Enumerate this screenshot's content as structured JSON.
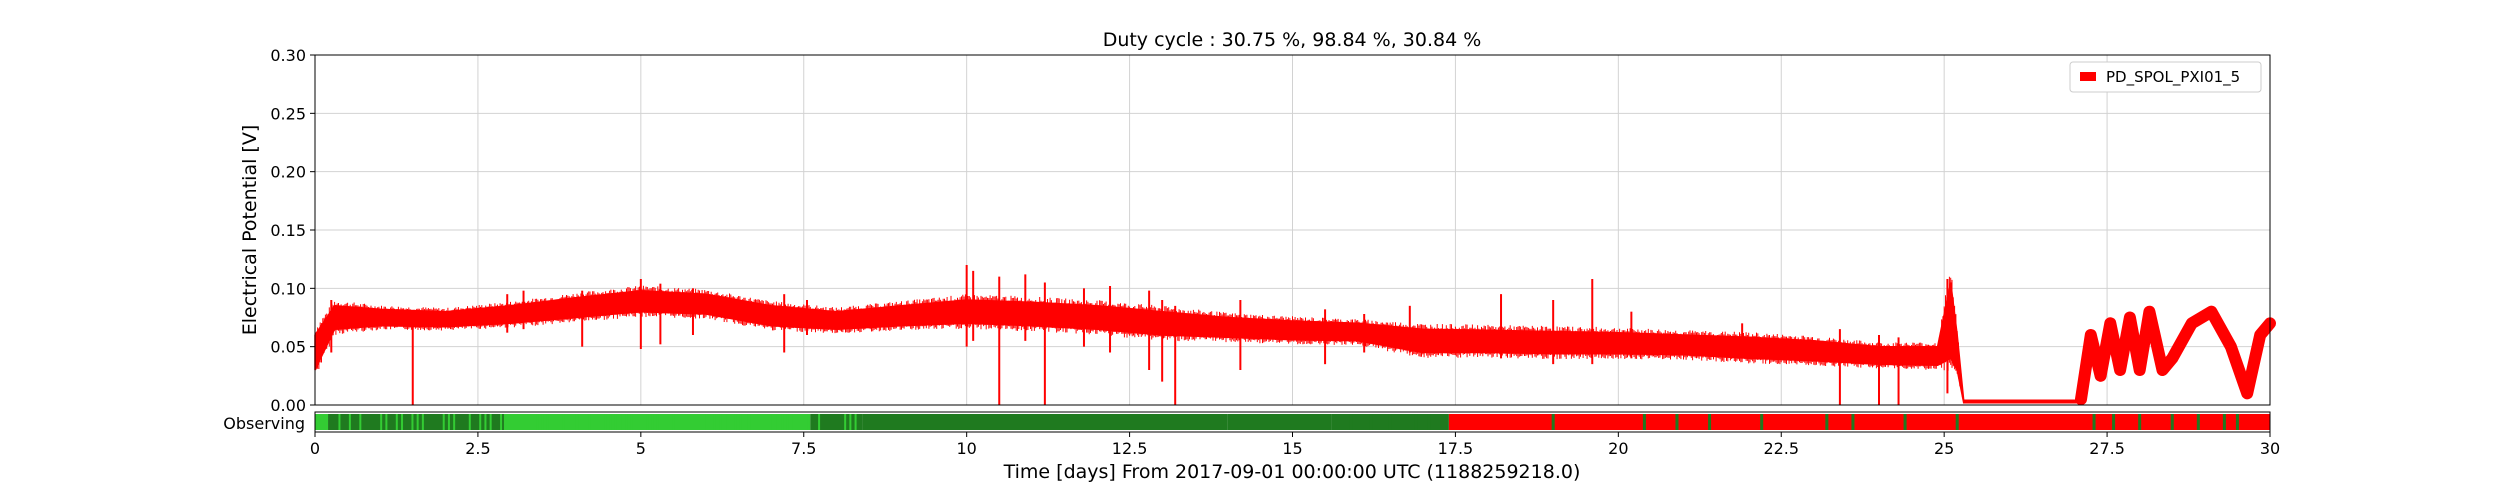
{
  "chart_data": {
    "type": "line",
    "title": "Duty cycle : 30.75 %, 98.84 %, 30.84 %",
    "xlabel": "Time [days] From 2017-09-01 00:00:00 UTC (1188259218.0)",
    "ylabel": "Electrical Potential [V]",
    "xlim": [
      0,
      30
    ],
    "ylim": [
      0,
      0.3
    ],
    "xticks": [
      {
        "value": 0,
        "label": "0"
      },
      {
        "value": 2.5,
        "label": "2.5"
      },
      {
        "value": 5,
        "label": "5"
      },
      {
        "value": 7.5,
        "label": "7.5"
      },
      {
        "value": 10,
        "label": "10"
      },
      {
        "value": 12.5,
        "label": "12.5"
      },
      {
        "value": 15,
        "label": "15"
      },
      {
        "value": 17.5,
        "label": "17.5"
      },
      {
        "value": 20,
        "label": "20"
      },
      {
        "value": 22.5,
        "label": "22.5"
      },
      {
        "value": 25,
        "label": "25"
      },
      {
        "value": 27.5,
        "label": "27.5"
      },
      {
        "value": 30,
        "label": "30"
      }
    ],
    "yticks": [
      {
        "value": 0.0,
        "label": "0.00"
      },
      {
        "value": 0.05,
        "label": "0.05"
      },
      {
        "value": 0.1,
        "label": "0.10"
      },
      {
        "value": 0.15,
        "label": "0.15"
      },
      {
        "value": 0.2,
        "label": "0.20"
      },
      {
        "value": 0.25,
        "label": "0.25"
      },
      {
        "value": 0.3,
        "label": "0.30"
      }
    ],
    "grid": true,
    "legend_position": "top-right",
    "series": [
      {
        "name": "PD_SPOL_PXI01_5",
        "color": "#ff0000",
        "envelope": [
          {
            "x": 0.0,
            "low": 0.03,
            "high": 0.06
          },
          {
            "x": 0.3,
            "low": 0.065,
            "high": 0.085
          },
          {
            "x": 1.0,
            "low": 0.068,
            "high": 0.082
          },
          {
            "x": 2.0,
            "low": 0.067,
            "high": 0.08
          },
          {
            "x": 3.0,
            "low": 0.07,
            "high": 0.085
          },
          {
            "x": 4.0,
            "low": 0.075,
            "high": 0.092
          },
          {
            "x": 5.0,
            "low": 0.08,
            "high": 0.098
          },
          {
            "x": 6.0,
            "low": 0.078,
            "high": 0.095
          },
          {
            "x": 7.0,
            "low": 0.068,
            "high": 0.085
          },
          {
            "x": 8.0,
            "low": 0.065,
            "high": 0.08
          },
          {
            "x": 9.0,
            "low": 0.068,
            "high": 0.085
          },
          {
            "x": 10.0,
            "low": 0.07,
            "high": 0.09
          },
          {
            "x": 11.0,
            "low": 0.068,
            "high": 0.088
          },
          {
            "x": 12.0,
            "low": 0.065,
            "high": 0.085
          },
          {
            "x": 13.0,
            "low": 0.06,
            "high": 0.08
          },
          {
            "x": 14.0,
            "low": 0.058,
            "high": 0.075
          },
          {
            "x": 15.0,
            "low": 0.056,
            "high": 0.072
          },
          {
            "x": 16.0,
            "low": 0.055,
            "high": 0.07
          },
          {
            "x": 17.0,
            "low": 0.045,
            "high": 0.065
          },
          {
            "x": 18.0,
            "low": 0.045,
            "high": 0.064
          },
          {
            "x": 19.0,
            "low": 0.044,
            "high": 0.063
          },
          {
            "x": 20.0,
            "low": 0.044,
            "high": 0.062
          },
          {
            "x": 21.0,
            "low": 0.043,
            "high": 0.06
          },
          {
            "x": 22.0,
            "low": 0.04,
            "high": 0.058
          },
          {
            "x": 23.0,
            "low": 0.038,
            "high": 0.055
          },
          {
            "x": 24.0,
            "low": 0.035,
            "high": 0.05
          },
          {
            "x": 24.9,
            "low": 0.034,
            "high": 0.05
          },
          {
            "x": 25.1,
            "low": 0.04,
            "high": 0.105
          },
          {
            "x": 25.2,
            "low": 0.03,
            "high": 0.06
          },
          {
            "x": 25.3,
            "low": 0.002,
            "high": 0.004
          },
          {
            "x": 27.1,
            "low": 0.002,
            "high": 0.004
          }
        ],
        "curve": [
          {
            "x": 27.1,
            "y": 0.005
          },
          {
            "x": 27.25,
            "y": 0.06
          },
          {
            "x": 27.4,
            "y": 0.025
          },
          {
            "x": 27.55,
            "y": 0.07
          },
          {
            "x": 27.7,
            "y": 0.03
          },
          {
            "x": 27.85,
            "y": 0.075
          },
          {
            "x": 28.0,
            "y": 0.03
          },
          {
            "x": 28.15,
            "y": 0.08
          },
          {
            "x": 28.35,
            "y": 0.03
          },
          {
            "x": 28.5,
            "y": 0.04
          },
          {
            "x": 28.8,
            "y": 0.07
          },
          {
            "x": 29.1,
            "y": 0.08
          },
          {
            "x": 29.4,
            "y": 0.05
          },
          {
            "x": 29.65,
            "y": 0.01
          },
          {
            "x": 29.85,
            "y": 0.06
          },
          {
            "x": 30.0,
            "y": 0.07
          }
        ],
        "spikes": [
          {
            "x": 0.25,
            "low": 0.045,
            "high": 0.09
          },
          {
            "x": 1.5,
            "low": 0.0,
            "high": 0.068
          },
          {
            "x": 2.95,
            "low": 0.062,
            "high": 0.095
          },
          {
            "x": 3.2,
            "low": 0.065,
            "high": 0.098
          },
          {
            "x": 4.1,
            "low": 0.05,
            "high": 0.098
          },
          {
            "x": 5.0,
            "low": 0.048,
            "high": 0.108
          },
          {
            "x": 5.3,
            "low": 0.052,
            "high": 0.104
          },
          {
            "x": 5.8,
            "low": 0.06,
            "high": 0.1
          },
          {
            "x": 7.2,
            "low": 0.045,
            "high": 0.095
          },
          {
            "x": 7.55,
            "low": 0.06,
            "high": 0.09
          },
          {
            "x": 10.0,
            "low": 0.05,
            "high": 0.12
          },
          {
            "x": 10.1,
            "low": 0.055,
            "high": 0.115
          },
          {
            "x": 10.5,
            "low": 0.0,
            "high": 0.11
          },
          {
            "x": 10.9,
            "low": 0.055,
            "high": 0.112
          },
          {
            "x": 11.2,
            "low": 0.0,
            "high": 0.105
          },
          {
            "x": 11.8,
            "low": 0.05,
            "high": 0.1
          },
          {
            "x": 12.2,
            "low": 0.045,
            "high": 0.102
          },
          {
            "x": 12.8,
            "low": 0.03,
            "high": 0.098
          },
          {
            "x": 13.0,
            "low": 0.02,
            "high": 0.09
          },
          {
            "x": 13.2,
            "low": 0.0,
            "high": 0.085
          },
          {
            "x": 14.2,
            "low": 0.03,
            "high": 0.09
          },
          {
            "x": 15.5,
            "low": 0.035,
            "high": 0.082
          },
          {
            "x": 16.1,
            "low": 0.045,
            "high": 0.078
          },
          {
            "x": 16.8,
            "low": 0.045,
            "high": 0.085
          },
          {
            "x": 18.2,
            "low": 0.04,
            "high": 0.095
          },
          {
            "x": 19.0,
            "low": 0.035,
            "high": 0.09
          },
          {
            "x": 19.6,
            "low": 0.035,
            "high": 0.108
          },
          {
            "x": 20.2,
            "low": 0.04,
            "high": 0.08
          },
          {
            "x": 21.9,
            "low": 0.04,
            "high": 0.07
          },
          {
            "x": 23.4,
            "low": 0.0,
            "high": 0.065
          },
          {
            "x": 24.0,
            "low": 0.0,
            "high": 0.06
          },
          {
            "x": 24.3,
            "low": 0.0,
            "high": 0.058
          },
          {
            "x": 25.05,
            "low": 0.01,
            "high": 0.108
          }
        ]
      }
    ],
    "state_bar": {
      "label": "Observing",
      "segments": [
        {
          "start": 0.0,
          "end": 0.2,
          "state": "observing"
        },
        {
          "start": 0.2,
          "end": 2.9,
          "state": "observing-partial"
        },
        {
          "start": 2.9,
          "end": 7.6,
          "state": "observing"
        },
        {
          "start": 7.6,
          "end": 8.4,
          "state": "observing-partial"
        },
        {
          "start": 8.4,
          "end": 14.0,
          "state": "observing-partial"
        },
        {
          "start": 14.0,
          "end": 15.6,
          "state": "observing-partial"
        },
        {
          "start": 15.6,
          "end": 17.4,
          "state": "mixed"
        },
        {
          "start": 17.4,
          "end": 30.0,
          "state": "not-observing"
        }
      ],
      "state_colors": {
        "observing": "#33cc33",
        "observing-partial": "#1f7a1f",
        "mixed": "#1f7a1f",
        "not-observing": "#ff0000"
      },
      "green_ticks": [
        15.9,
        16.2,
        16.5,
        16.9,
        17.1,
        19.0,
        20.4,
        20.9,
        21.4,
        22.2,
        23.2,
        23.6,
        24.4,
        25.2,
        27.3,
        27.6,
        28.0,
        28.5,
        28.9,
        29.3,
        29.5
      ]
    }
  }
}
